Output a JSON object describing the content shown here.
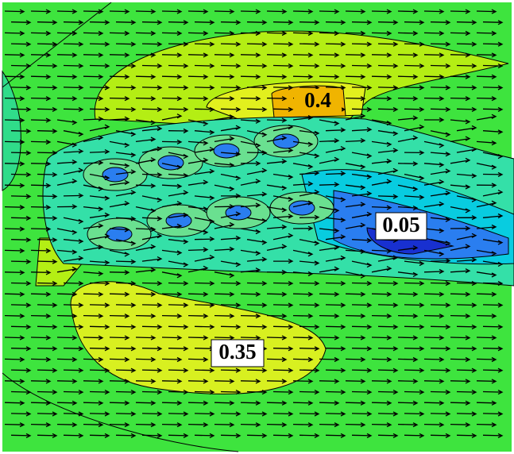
{
  "chart_data": {
    "type": "contour",
    "contour_labels": [
      0.4,
      0.05,
      0.35
    ]
  }
}
